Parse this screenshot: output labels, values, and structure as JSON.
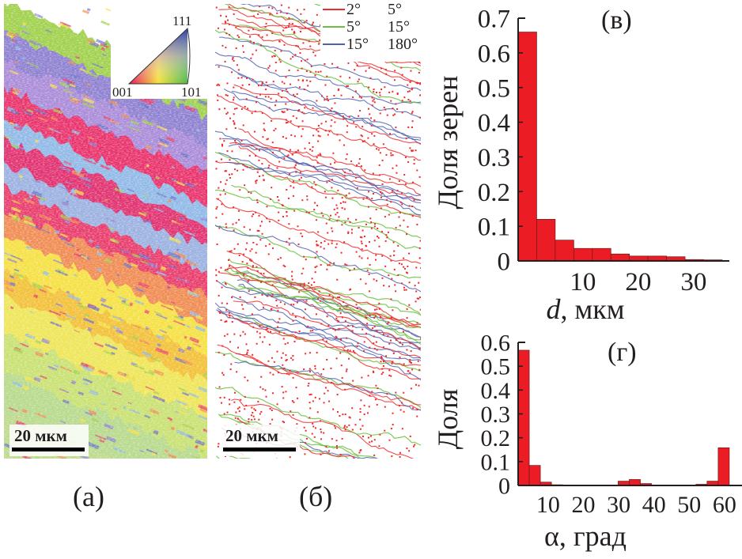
{
  "panels": {
    "a": {
      "label": "(а)",
      "scale_bar": "20 мкм",
      "ipf_inset": {
        "top": "111",
        "left": "001",
        "right": "101"
      }
    },
    "b": {
      "label": "(б)",
      "scale_bar": "20 мкм",
      "legend": [
        {
          "from": "2°",
          "to": "5°",
          "color": "#ee2b2b"
        },
        {
          "from": "5°",
          "to": "15°",
          "color": "#6cbf3f"
        },
        {
          "from": "15°",
          "to": "180°",
          "color": "#5060b0"
        }
      ]
    }
  },
  "colors": {
    "bar_fill": "#ec1c24",
    "bar_edge": "#6b1a1a",
    "axis": "#231f20"
  },
  "chart_data": [
    {
      "type": "bar",
      "panel_label": "(в)",
      "xlabel_var": "d",
      "xlabel_unit": ", мкм",
      "ylabel": "Доля зерен",
      "ylim": [
        0,
        0.7
      ],
      "xlim": [
        -1.7,
        37
      ],
      "bin_start": -1.7,
      "bin_width": 3.35,
      "values": [
        0.66,
        0.12,
        0.06,
        0.036,
        0.036,
        0.02,
        0.014,
        0.014,
        0.012,
        0.004,
        0.003
      ],
      "yticks": [
        "0",
        "0.1",
        "0.2",
        "0.3",
        "0.4",
        "0.5",
        "0.6",
        "0.7"
      ],
      "xticks": [
        "10",
        "20",
        "30"
      ],
      "grid": false
    },
    {
      "type": "bar",
      "panel_label": "(г)",
      "xlabel": "α, град",
      "ylabel": "Доля",
      "ylim": [
        0,
        0.6
      ],
      "xlim": [
        1.5,
        64
      ],
      "bin_start": 1.5,
      "bin_width": 3.15,
      "values": [
        0.567,
        0.084,
        0.014,
        0.003,
        0.002,
        0.002,
        0.001,
        0.002,
        0.002,
        0.018,
        0.025,
        0.008,
        0.002,
        0.002,
        0.002,
        0.002,
        0.005,
        0.018,
        0.158
      ],
      "yticks": [
        "0",
        "0.1",
        "0.2",
        "0.3",
        "0.4",
        "0.5",
        "0.6"
      ],
      "xticks": [
        "10",
        "20",
        "30",
        "40",
        "50",
        "60"
      ],
      "grid": false
    }
  ]
}
